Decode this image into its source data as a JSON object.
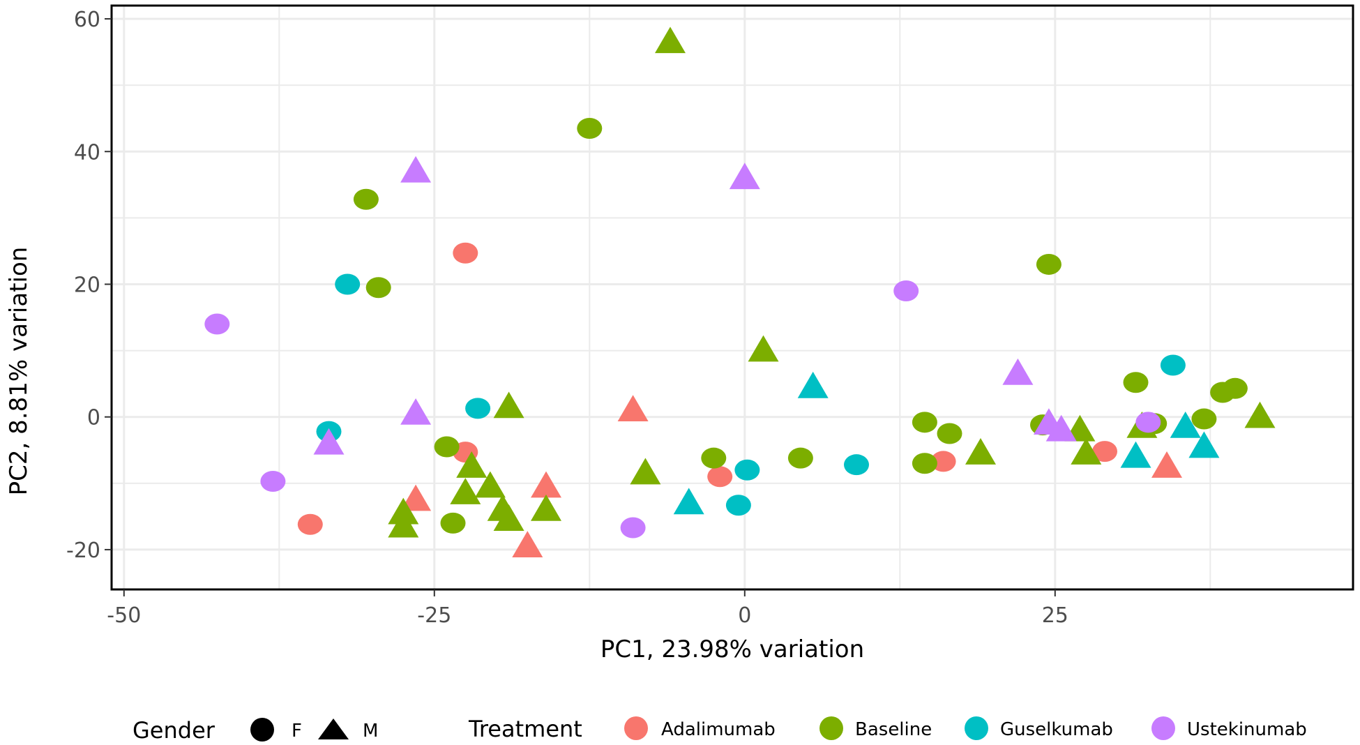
{
  "chart_data": {
    "type": "scatter",
    "xlabel": "PC1, 23.98% variation",
    "ylabel": "PC2, 8.81% variation",
    "xlim": [
      -51,
      49
    ],
    "ylim": [
      -26,
      62
    ],
    "x_ticks": [
      -50,
      -25,
      0,
      25
    ],
    "y_ticks": [
      -20,
      0,
      20,
      40,
      60
    ],
    "x_tick_labels": [
      "-50",
      "-25",
      "0",
      "25"
    ],
    "y_tick_labels": [
      "-20",
      "0",
      "20",
      "40",
      "60"
    ],
    "grid": true,
    "legend_position": "bottom",
    "legend": {
      "gender_title": "Gender",
      "gender": [
        {
          "label": "F",
          "shape": "circle"
        },
        {
          "label": "M",
          "shape": "triangle"
        }
      ],
      "treatment_title": "Treatment",
      "treatment": [
        {
          "label": "Adalimumab",
          "color": "#F8766D"
        },
        {
          "label": "Baseline",
          "color": "#7CAE00"
        },
        {
          "label": "Guselkumab",
          "color": "#00BFC4"
        },
        {
          "label": "Ustekinumab",
          "color": "#C77CFF"
        }
      ]
    },
    "series": [
      {
        "name": "Adalimumab",
        "color": "#F8766D",
        "points": [
          {
            "x": -22.5,
            "y": 24.7,
            "shape": "circle"
          },
          {
            "x": -22.5,
            "y": -5.3,
            "shape": "circle"
          },
          {
            "x": -35,
            "y": -16.2,
            "shape": "circle"
          },
          {
            "x": -2,
            "y": -9,
            "shape": "circle"
          },
          {
            "x": 16,
            "y": -6.7,
            "shape": "circle"
          },
          {
            "x": 29,
            "y": -5.2,
            "shape": "circle"
          },
          {
            "x": -26.5,
            "y": -12.5,
            "shape": "triangle"
          },
          {
            "x": -17.5,
            "y": -19.5,
            "shape": "triangle"
          },
          {
            "x": -16,
            "y": -10.5,
            "shape": "triangle"
          },
          {
            "x": -9,
            "y": 1,
            "shape": "triangle"
          },
          {
            "x": 34,
            "y": -7.5,
            "shape": "triangle"
          }
        ]
      },
      {
        "name": "Baseline",
        "color": "#7CAE00",
        "points": [
          {
            "x": -12.5,
            "y": 43.5,
            "shape": "circle"
          },
          {
            "x": -30.5,
            "y": 32.8,
            "shape": "circle"
          },
          {
            "x": -29.5,
            "y": 19.5,
            "shape": "circle"
          },
          {
            "x": -24,
            "y": -4.5,
            "shape": "circle"
          },
          {
            "x": -23.5,
            "y": -16,
            "shape": "circle"
          },
          {
            "x": -2.5,
            "y": -6.2,
            "shape": "circle"
          },
          {
            "x": 4.5,
            "y": -6.2,
            "shape": "circle"
          },
          {
            "x": 14.5,
            "y": -0.8,
            "shape": "circle"
          },
          {
            "x": 16.5,
            "y": -2.5,
            "shape": "circle"
          },
          {
            "x": 14.5,
            "y": -7,
            "shape": "circle"
          },
          {
            "x": 24,
            "y": -1.2,
            "shape": "circle"
          },
          {
            "x": 24.5,
            "y": 23,
            "shape": "circle"
          },
          {
            "x": 31.5,
            "y": 5.2,
            "shape": "circle"
          },
          {
            "x": 33,
            "y": -1,
            "shape": "circle"
          },
          {
            "x": 37,
            "y": -0.3,
            "shape": "circle"
          },
          {
            "x": 38.5,
            "y": 3.7,
            "shape": "circle"
          },
          {
            "x": 39.5,
            "y": 4.3,
            "shape": "circle"
          },
          {
            "x": -6,
            "y": 56.5,
            "shape": "triangle"
          },
          {
            "x": 1.5,
            "y": 10,
            "shape": "triangle"
          },
          {
            "x": -19,
            "y": 1.5,
            "shape": "triangle"
          },
          {
            "x": -22,
            "y": -7.5,
            "shape": "triangle"
          },
          {
            "x": -22.5,
            "y": -11.5,
            "shape": "triangle"
          },
          {
            "x": -20.5,
            "y": -10.5,
            "shape": "triangle"
          },
          {
            "x": -27.5,
            "y": -14.5,
            "shape": "triangle"
          },
          {
            "x": -27.5,
            "y": -16.5,
            "shape": "triangle"
          },
          {
            "x": -19.5,
            "y": -14,
            "shape": "triangle"
          },
          {
            "x": -19,
            "y": -15.5,
            "shape": "triangle"
          },
          {
            "x": -16,
            "y": -14,
            "shape": "triangle"
          },
          {
            "x": -8,
            "y": -8.5,
            "shape": "triangle"
          },
          {
            "x": 19,
            "y": -5.5,
            "shape": "triangle"
          },
          {
            "x": 27.5,
            "y": -5.5,
            "shape": "triangle"
          },
          {
            "x": 27,
            "y": -2,
            "shape": "triangle"
          },
          {
            "x": 32,
            "y": -1.5,
            "shape": "triangle"
          },
          {
            "x": 41.5,
            "y": 0,
            "shape": "triangle"
          }
        ]
      },
      {
        "name": "Guselkumab",
        "color": "#00BFC4",
        "points": [
          {
            "x": -32,
            "y": 20,
            "shape": "circle"
          },
          {
            "x": -21.5,
            "y": 1.3,
            "shape": "circle"
          },
          {
            "x": -33.5,
            "y": -2.2,
            "shape": "circle"
          },
          {
            "x": 0.2,
            "y": -8,
            "shape": "circle"
          },
          {
            "x": -0.5,
            "y": -13.3,
            "shape": "circle"
          },
          {
            "x": 9,
            "y": -7.2,
            "shape": "circle"
          },
          {
            "x": 34.5,
            "y": 7.8,
            "shape": "circle"
          },
          {
            "x": -4.5,
            "y": -13,
            "shape": "triangle"
          },
          {
            "x": 5.5,
            "y": 4.5,
            "shape": "triangle"
          },
          {
            "x": 31.5,
            "y": -6,
            "shape": "triangle"
          },
          {
            "x": 35.5,
            "y": -1.5,
            "shape": "triangle"
          },
          {
            "x": 37,
            "y": -4.5,
            "shape": "triangle"
          }
        ]
      },
      {
        "name": "Ustekinumab",
        "color": "#C77CFF",
        "points": [
          {
            "x": -42.5,
            "y": 14,
            "shape": "circle"
          },
          {
            "x": -38,
            "y": -9.7,
            "shape": "circle"
          },
          {
            "x": -9,
            "y": -16.7,
            "shape": "circle"
          },
          {
            "x": 13,
            "y": 19,
            "shape": "circle"
          },
          {
            "x": 32.5,
            "y": -0.8,
            "shape": "circle"
          },
          {
            "x": -26.5,
            "y": 37,
            "shape": "triangle"
          },
          {
            "x": 0,
            "y": 36,
            "shape": "triangle"
          },
          {
            "x": -26.5,
            "y": 0.5,
            "shape": "triangle"
          },
          {
            "x": -33.5,
            "y": -4,
            "shape": "triangle"
          },
          {
            "x": 22,
            "y": 6.5,
            "shape": "triangle"
          },
          {
            "x": 24.5,
            "y": -1,
            "shape": "triangle"
          },
          {
            "x": 25.5,
            "y": -2,
            "shape": "triangle"
          }
        ]
      }
    ]
  }
}
